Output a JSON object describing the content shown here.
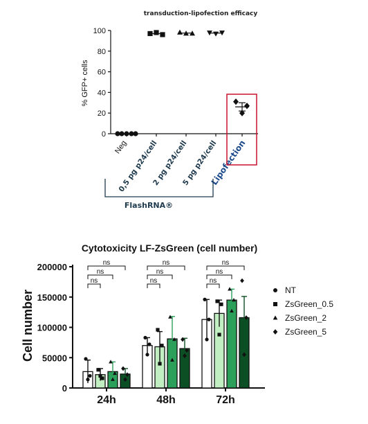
{
  "chart_data": [
    {
      "type": "scatter",
      "title": "transduction-lipofection efficacy",
      "ylabel": "% GFP+ cells",
      "ylim": [
        0,
        100
      ],
      "yticks": [
        "0",
        "20",
        "40",
        "60",
        "80",
        "100"
      ],
      "categories": [
        "Neg",
        "0,5 pg p24/cell",
        "2 pg p24/cell",
        "5 pg p24/cell",
        "Lipofection"
      ],
      "group_label": "FlashRNA®",
      "highlighted_category": "Lipofection",
      "highlight_color": "#c8102e",
      "points": [
        {
          "category": "Neg",
          "marker": "circle",
          "values": [
            0,
            0,
            0,
            0,
            0
          ],
          "mean": 0
        },
        {
          "category": "0,5 pg p24/cell",
          "marker": "square",
          "values": [
            97,
            98,
            96
          ],
          "mean": 97
        },
        {
          "category": "2 pg p24/cell",
          "marker": "triangle-up",
          "values": [
            98,
            97,
            97
          ],
          "mean": 97.5
        },
        {
          "category": "5 pg p24/cell",
          "marker": "triangle-down",
          "values": [
            98,
            97,
            98
          ],
          "mean": 97.5
        },
        {
          "category": "Lipofection",
          "marker": "diamond",
          "values": [
            31,
            27,
            20
          ],
          "mean": 26
        }
      ]
    },
    {
      "type": "bar",
      "title": "Cytotoxicity LF-ZsGreen (cell number)",
      "ylabel": "Cell number",
      "ylim": [
        0,
        200000
      ],
      "yticks": [
        "0",
        "50000",
        "100000",
        "150000",
        "200000"
      ],
      "categories": [
        "24h",
        "48h",
        "72h"
      ],
      "significance_label": "ns",
      "series": [
        {
          "name": "NT",
          "marker": "circle",
          "color": "#ffffff",
          "values": [
            27000,
            70000,
            113000
          ],
          "errors": [
            19000,
            13000,
            33000
          ],
          "points": [
            [
              48000,
              20000,
              14000
            ],
            [
              83000,
              72000,
              55000
            ],
            [
              146000,
              113000,
              80000
            ]
          ]
        },
        {
          "name": "ZsGreen_0.5",
          "marker": "square",
          "color": "#c2efc2",
          "values": [
            22000,
            68000,
            123000
          ],
          "errors": [
            10000,
            25000,
            22000
          ],
          "points": [
            [
              30000,
              16000,
              20000
            ],
            [
              96000,
              70000,
              40000
            ],
            [
              143000,
              138000,
              88000
            ]
          ]
        },
        {
          "name": "ZsGreen_2",
          "marker": "triangle-up",
          "color": "#2ca05a",
          "values": [
            27000,
            81000,
            145000
          ],
          "errors": [
            16000,
            37000,
            18000
          ],
          "points": [
            [
              43000,
              24000,
              14000
            ],
            [
              117000,
              80000,
              46000
            ],
            [
              163000,
              145000,
              127000
            ]
          ]
        },
        {
          "name": "ZsGreen_5",
          "marker": "diamond",
          "color": "#0d4f24",
          "values": [
            23000,
            65000,
            116000
          ],
          "errors": [
            9000,
            17000,
            35000
          ],
          "points": [
            [
              32000,
              22000,
              14000
            ],
            [
              80000,
              62000,
              53000
            ],
            [
              177000,
              116000,
              55000
            ]
          ]
        }
      ]
    }
  ]
}
